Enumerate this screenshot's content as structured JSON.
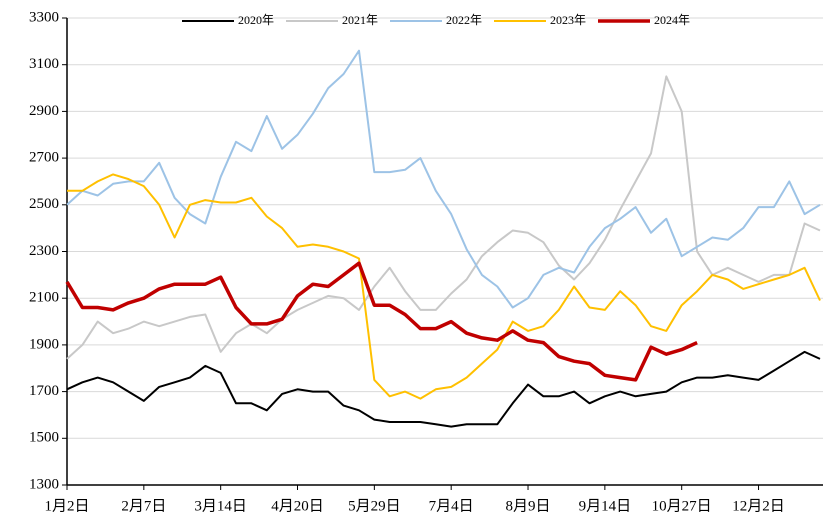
{
  "chart_data": {
    "type": "line",
    "categories": [
      "1月2日",
      null,
      null,
      null,
      null,
      "2月7日",
      null,
      null,
      null,
      null,
      "3月14日",
      null,
      null,
      null,
      null,
      "4月20日",
      null,
      null,
      null,
      null,
      "5月29日",
      null,
      null,
      null,
      null,
      "7月4日",
      null,
      null,
      null,
      null,
      "8月9日",
      null,
      null,
      null,
      null,
      "9月14日",
      null,
      null,
      null,
      null,
      "10月27日",
      null,
      null,
      null,
      null,
      "12月2日",
      null,
      null,
      null,
      null
    ],
    "ylim": [
      1300,
      3300
    ],
    "yticks": [
      1300,
      1500,
      1700,
      1900,
      2100,
      2300,
      2500,
      2700,
      2900,
      3100,
      3300
    ],
    "grid": true,
    "series": [
      {
        "name": "2020年",
        "color": "#000000",
        "values": [
          1710,
          1740,
          1760,
          1740,
          1700,
          1660,
          1720,
          1740,
          1760,
          1810,
          1780,
          1650,
          1650,
          1620,
          1690,
          1710,
          1700,
          1700,
          1640,
          1620,
          1580,
          1570,
          1570,
          1570,
          1560,
          1550,
          1560,
          1560,
          1560,
          1650,
          1730,
          1680,
          1680,
          1700,
          1650,
          1680,
          1700,
          1680,
          1690,
          1700,
          1740,
          1760,
          1760,
          1770,
          1760,
          1750,
          1790,
          1830,
          1870,
          1840
        ]
      },
      {
        "name": "2021年",
        "color": "#c8c8c8",
        "values": [
          1840,
          1900,
          2000,
          1950,
          1970,
          2000,
          1980,
          2000,
          2020,
          2030,
          1870,
          1950,
          1990,
          1950,
          2010,
          2050,
          2080,
          2110,
          2100,
          2050,
          2150,
          2230,
          2130,
          2050,
          2050,
          2120,
          2180,
          2280,
          2340,
          2390,
          2380,
          2340,
          2240,
          2180,
          2250,
          2350,
          2480,
          2600,
          2720,
          3050,
          2900,
          2300,
          2200,
          2230,
          2200,
          2170,
          2200,
          2200,
          2420,
          2390
        ]
      },
      {
        "name": "2022年",
        "color": "#9dc3e6",
        "values": [
          2500,
          2560,
          2540,
          2590,
          2600,
          2600,
          2680,
          2530,
          2460,
          2420,
          2620,
          2770,
          2730,
          2880,
          2740,
          2800,
          2890,
          3000,
          3060,
          3160,
          2640,
          2640,
          2650,
          2700,
          2560,
          2460,
          2310,
          2200,
          2150,
          2060,
          2100,
          2200,
          2230,
          2210,
          2320,
          2400,
          2440,
          2490,
          2380,
          2440,
          2280,
          2320,
          2360,
          2350,
          2400,
          2490,
          2490,
          2600,
          2460,
          2500
        ]
      },
      {
        "name": "2023年",
        "color": "#ffc000",
        "values": [
          2560,
          2560,
          2600,
          2630,
          2610,
          2580,
          2500,
          2360,
          2500,
          2520,
          2510,
          2510,
          2530,
          2450,
          2400,
          2320,
          2330,
          2320,
          2300,
          2270,
          1750,
          1680,
          1700,
          1670,
          1710,
          1720,
          1760,
          1820,
          1880,
          2000,
          1960,
          1980,
          2050,
          2150,
          2060,
          2050,
          2130,
          2070,
          1980,
          1960,
          2070,
          2130,
          2200,
          2180,
          2140,
          2160,
          2180,
          2200,
          2230,
          2090
        ]
      },
      {
        "name": "2024年",
        "color": "#c00000",
        "values": [
          2170,
          2060,
          2060,
          2050,
          2080,
          2100,
          2140,
          2160,
          2160,
          2160,
          2190,
          2060,
          1990,
          1990,
          2010,
          2110,
          2160,
          2150,
          2200,
          2250,
          2070,
          2070,
          2030,
          1970,
          1970,
          2000,
          1950,
          1930,
          1920,
          1960,
          1920,
          1910,
          1850,
          1830,
          1820,
          1770,
          1760,
          1750,
          1890,
          1860,
          1880,
          1910,
          null,
          null,
          null,
          null,
          null,
          null,
          null,
          null
        ]
      }
    ]
  }
}
